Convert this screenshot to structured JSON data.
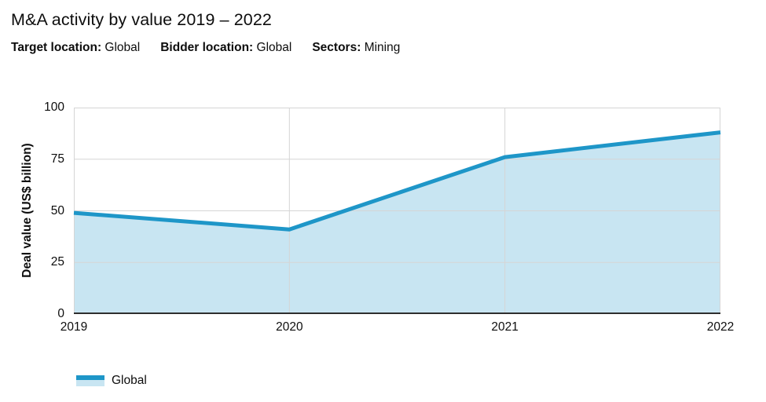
{
  "header": {
    "title": "M&A activity by value 2019 – 2022",
    "filters": [
      {
        "label": "Target location:",
        "value": "Global"
      },
      {
        "label": "Bidder location:",
        "value": "Global"
      },
      {
        "label": "Sectors:",
        "value": "Mining"
      }
    ]
  },
  "chart_data": {
    "type": "area",
    "title": "M&A activity by value 2019 – 2022",
    "categories": [
      "2019",
      "2020",
      "2021",
      "2022"
    ],
    "series": [
      {
        "name": "Global",
        "values": [
          49,
          41,
          76,
          88
        ]
      }
    ],
    "xlabel": "",
    "ylabel": "Deal value (US$ billion)",
    "ylim": [
      0,
      100
    ],
    "yticks": [
      0,
      25,
      50,
      75,
      100
    ],
    "grid": true,
    "legend_position": "bottom-left"
  },
  "legend": {
    "items": [
      {
        "label": "Global"
      }
    ]
  },
  "colors": {
    "line": "#1e96c8",
    "fill": "#c8e5f2",
    "grid": "#d5d5d5",
    "axis": "#2e2e2e",
    "text": "#0d0d0d"
  }
}
